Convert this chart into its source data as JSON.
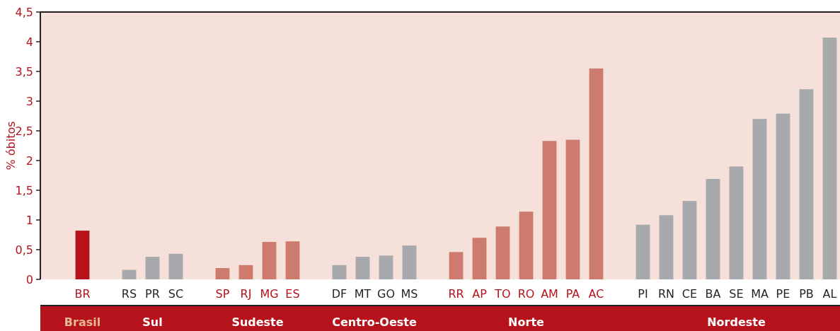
{
  "chart_data": {
    "type": "bar",
    "ylabel": "% óbitos",
    "categories": [
      "BR",
      null,
      "RS",
      "PR",
      "SC",
      null,
      "SP",
      "RJ",
      "MG",
      "ES",
      null,
      "DF",
      "MT",
      "GO",
      "MS",
      null,
      "RR",
      "AP",
      "TO",
      "RO",
      "AM",
      "PA",
      "AC",
      null,
      "PI",
      "RN",
      "CE",
      "BA",
      "SE",
      "MA",
      "PE",
      "PB",
      "AL"
    ],
    "values": [
      0.82,
      null,
      0.16,
      0.38,
      0.43,
      null,
      0.19,
      0.24,
      0.63,
      0.64,
      null,
      0.24,
      0.38,
      0.4,
      0.57,
      null,
      0.46,
      0.7,
      0.89,
      1.14,
      2.33,
      2.35,
      3.55,
      null,
      0.92,
      1.08,
      1.32,
      1.69,
      1.9,
      2.7,
      2.79,
      3.2,
      4.07
    ],
    "colors": [
      "#b5121b",
      null,
      "#a7a9ac",
      "#a7a9ac",
      "#a7a9ac",
      null,
      "#cd7b6e",
      "#cd7b6e",
      "#cd7b6e",
      "#cd7b6e",
      null,
      "#a7a9ac",
      "#a7a9ac",
      "#a7a9ac",
      "#a7a9ac",
      null,
      "#cd7b6e",
      "#cd7b6e",
      "#cd7b6e",
      "#cd7b6e",
      "#cd7b6e",
      "#cd7b6e",
      "#cd7b6e",
      null,
      "#a7a9ac",
      "#a7a9ac",
      "#a7a9ac",
      "#a7a9ac",
      "#a7a9ac",
      "#a7a9ac",
      "#a7a9ac",
      "#a7a9ac",
      "#a7a9ac"
    ],
    "ylim": [
      0,
      4.5
    ],
    "yticks": [
      0,
      {
        "value": 0.5,
        "label": "0,5"
      },
      1,
      {
        "value": 1.5,
        "label": "1,5"
      },
      2,
      {
        "value": 2.5,
        "label": "2,5"
      },
      3,
      {
        "value": 3.5,
        "label": "3,5"
      },
      4,
      {
        "value": 4.5,
        "label": "4,5"
      }
    ],
    "grid": false,
    "annotations": [
      "Brasil",
      "Sul",
      "Sudeste",
      "Centro-Oeste",
      "Norte",
      "Nordeste"
    ]
  }
}
